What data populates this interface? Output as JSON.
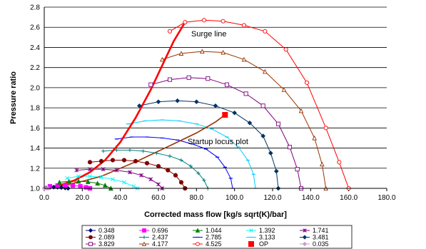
{
  "chart_data": {
    "type": "scatter",
    "xlabel": "Corrected mass flow [kg/s sqrt(K)/bar]",
    "ylabel": "Pressure ratio",
    "xlim": [
      0,
      180
    ],
    "ylim": [
      1.0,
      2.8
    ],
    "xticks": [
      "0.0",
      "20.0",
      "40.0",
      "60.0",
      "80.0",
      "100.0",
      "120.0",
      "140.0",
      "160.0",
      "180.0"
    ],
    "yticks": [
      "1.0",
      "1.2",
      "1.4",
      "1.6",
      "1.8",
      "2.0",
      "2.2",
      "2.4",
      "2.6",
      "2.8"
    ],
    "grid": "horizontal",
    "legend_position": "bottom",
    "annotations": [
      {
        "text": "Surge line",
        "x": 76,
        "y": 2.52
      },
      {
        "text": "Startup locus plot",
        "x": 75,
        "y": 1.46
      }
    ],
    "series": [
      {
        "name": "0.348",
        "color": "#000080",
        "marker": "diamond",
        "x": [
          1,
          3,
          5,
          7,
          9,
          11,
          12.5
        ],
        "y": [
          1.005,
          1.01,
          1.012,
          1.011,
          1.008,
          1.004,
          1.0
        ]
      },
      {
        "name": "0.696",
        "color": "#ff00ff",
        "marker": "square",
        "x": [
          3,
          7,
          11,
          15,
          19,
          22,
          24
        ],
        "y": [
          1.02,
          1.028,
          1.03,
          1.028,
          1.02,
          1.01,
          1.0
        ]
      },
      {
        "name": "1.044",
        "color": "#008000",
        "marker": "triangle",
        "x": [
          8,
          13,
          18,
          23,
          28,
          32,
          35
        ],
        "y": [
          1.06,
          1.07,
          1.07,
          1.065,
          1.05,
          1.03,
          1.0
        ]
      },
      {
        "name": "1.392",
        "color": "#00ffff",
        "marker": "x",
        "x": [
          12,
          18,
          24,
          30,
          36,
          42,
          47,
          49
        ],
        "y": [
          1.1,
          1.12,
          1.12,
          1.11,
          1.09,
          1.06,
          1.02,
          1.0
        ]
      },
      {
        "name": "1.741",
        "color": "#800080",
        "marker": "star",
        "x": [
          17,
          24,
          31,
          38,
          45,
          51,
          56,
          60,
          62
        ],
        "y": [
          1.18,
          1.19,
          1.19,
          1.18,
          1.16,
          1.13,
          1.09,
          1.04,
          1.0
        ]
      },
      {
        "name": "2.089",
        "color": "#800000",
        "marker": "circle",
        "x": [
          24,
          30,
          36,
          42,
          48,
          54,
          60,
          65,
          69,
          72,
          74
        ],
        "y": [
          1.26,
          1.27,
          1.28,
          1.28,
          1.27,
          1.25,
          1.22,
          1.18,
          1.13,
          1.06,
          1.0
        ]
      },
      {
        "name": "2.437",
        "color": "#008080",
        "marker": "plus",
        "x": [
          31,
          38,
          45,
          52,
          59,
          66,
          72,
          77,
          81,
          84,
          86
        ],
        "y": [
          1.37,
          1.38,
          1.38,
          1.37,
          1.35,
          1.32,
          1.28,
          1.22,
          1.15,
          1.08,
          1.0
        ]
      },
      {
        "name": "2.785",
        "color": "#0000ff",
        "marker": "dash",
        "x": [
          38,
          46,
          54,
          62,
          70,
          78,
          85,
          91,
          95,
          98,
          99
        ],
        "y": [
          1.49,
          1.51,
          1.51,
          1.5,
          1.48,
          1.44,
          1.39,
          1.31,
          1.21,
          1.1,
          1.0
        ]
      },
      {
        "name": "3.133",
        "color": "#00ccff",
        "marker": "dash",
        "x": [
          44,
          53,
          62,
          71,
          80,
          88,
          96,
          102,
          107,
          110,
          111
        ],
        "y": [
          1.64,
          1.67,
          1.68,
          1.67,
          1.64,
          1.59,
          1.51,
          1.41,
          1.28,
          1.14,
          1.0
        ]
      },
      {
        "name": "3.481",
        "color": "#003366",
        "marker": "diamond",
        "x": [
          50,
          60,
          70,
          80,
          90,
          100,
          108,
          115,
          119,
          122,
          123
        ],
        "y": [
          1.82,
          1.86,
          1.87,
          1.86,
          1.82,
          1.75,
          1.65,
          1.52,
          1.35,
          1.17,
          1.0
        ]
      },
      {
        "name": "3.829",
        "color": "#800080",
        "marker": "square-open",
        "x": [
          56,
          66,
          76,
          86,
          96,
          106,
          115,
          123,
          129,
          133,
          135
        ],
        "y": [
          2.03,
          2.08,
          2.1,
          2.09,
          2.03,
          1.94,
          1.82,
          1.64,
          1.41,
          1.19,
          1.0
        ]
      },
      {
        "name": "4.177",
        "color": "#993300",
        "marker": "triangle-open",
        "x": [
          62,
          72,
          83,
          94,
          105,
          116,
          126,
          135,
          142,
          146,
          148
        ],
        "y": [
          2.28,
          2.34,
          2.36,
          2.35,
          2.28,
          2.16,
          1.98,
          1.77,
          1.5,
          1.24,
          1.0
        ]
      },
      {
        "name": "4.525",
        "color": "#ff0000",
        "marker": "circle-open",
        "x": [
          66,
          74,
          84,
          94,
          105,
          116,
          127,
          138,
          148,
          155,
          160
        ],
        "y": [
          2.56,
          2.65,
          2.67,
          2.66,
          2.62,
          2.56,
          2.38,
          2.05,
          1.6,
          1.26,
          1.0
        ]
      },
      {
        "name": "OP",
        "color": "#ff0000",
        "marker": "square-filled",
        "x": [
          95
        ],
        "y": [
          1.73
        ]
      },
      {
        "name": "0.035",
        "color": "#cc99cc",
        "marker": "diamond",
        "x": [
          0,
          1,
          2
        ],
        "y": [
          1.0,
          1.0,
          1.0
        ]
      }
    ],
    "surge_line": {
      "color": "#ff0000",
      "x": [
        0,
        8,
        16,
        24,
        32,
        40,
        48,
        56,
        62,
        68,
        74
      ],
      "y": [
        1.0,
        1.03,
        1.08,
        1.16,
        1.28,
        1.46,
        1.7,
        1.98,
        2.22,
        2.46,
        2.65
      ]
    },
    "startup_locus": {
      "color": "#993300",
      "x": [
        0,
        10,
        20,
        30,
        40,
        50,
        60,
        70,
        80,
        90,
        95
      ],
      "y": [
        1.0,
        1.03,
        1.07,
        1.12,
        1.2,
        1.28,
        1.37,
        1.46,
        1.55,
        1.66,
        1.73
      ]
    }
  }
}
